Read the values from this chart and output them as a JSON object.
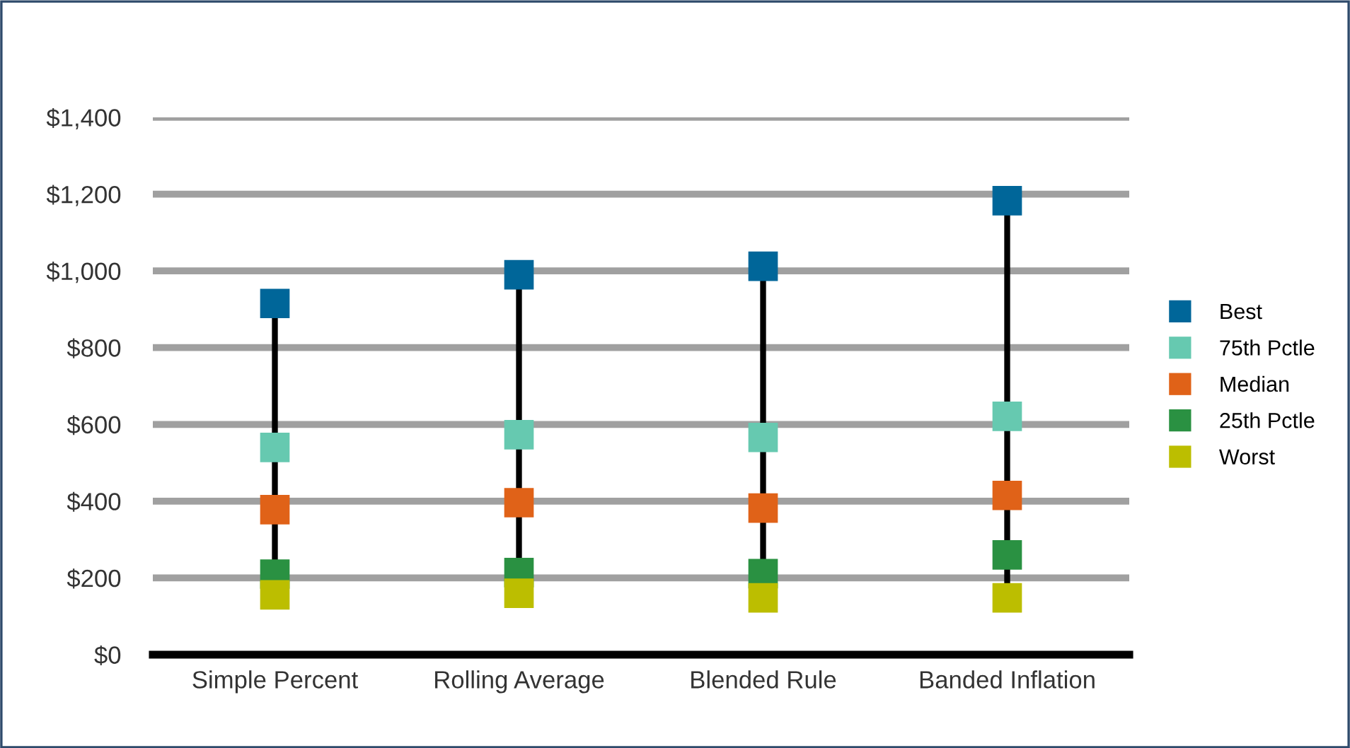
{
  "chart_data": {
    "type": "scatter",
    "categories": [
      "Simple Percent",
      "Rolling Average",
      "Blended Rule",
      "Banded Inflation"
    ],
    "series": [
      {
        "name": "Best",
        "color": "#006699",
        "marker": "square",
        "values": [
          915,
          990,
          1012,
          1183
        ]
      },
      {
        "name": "75th Pctle",
        "color": "#66c9b0",
        "marker": "square",
        "values": [
          540,
          573,
          566,
          621
        ]
      },
      {
        "name": "Median",
        "color": "#e06218",
        "marker": "square",
        "values": [
          378,
          396,
          382,
          415
        ]
      },
      {
        "name": "25th Pctle",
        "color": "#2a9142",
        "marker": "square",
        "values": [
          210,
          214,
          211,
          260
        ]
      },
      {
        "name": "Worst",
        "color": "#bcbe00",
        "marker": "square",
        "values": [
          156,
          160,
          148,
          148
        ]
      }
    ],
    "ylim": [
      0,
      1400
    ],
    "yticks": [
      {
        "value": 0,
        "label": "$0"
      },
      {
        "value": 200,
        "label": "$200"
      },
      {
        "value": 400,
        "label": "$400"
      },
      {
        "value": 600,
        "label": "$600"
      },
      {
        "value": 800,
        "label": "$800"
      },
      {
        "value": 1000,
        "label": "$1,000"
      },
      {
        "value": 1200,
        "label": "$1,200"
      },
      {
        "value": 1400,
        "label": "$1,400"
      }
    ],
    "grid": "y",
    "legend": "right"
  }
}
